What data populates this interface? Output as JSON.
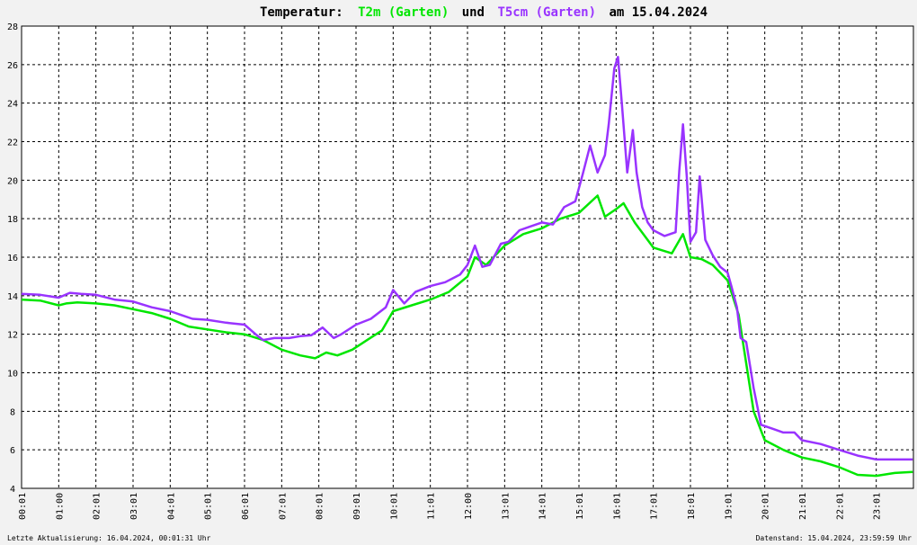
{
  "chart_data": {
    "type": "line",
    "title": {
      "prefix": "Temperatur:",
      "series1_label": "T2m (Garten)",
      "connector": "und",
      "series2_label": "T5cm (Garten)",
      "date_text": "am 15.04.2024"
    },
    "ylim": [
      4,
      28
    ],
    "y_ticks": [
      "4",
      "6",
      "8",
      "10",
      "12",
      "14",
      "16",
      "18",
      "20",
      "22",
      "24",
      "26",
      "28"
    ],
    "x_ticks": [
      "00:01",
      "01:00",
      "02:01",
      "03:01",
      "04:01",
      "05:01",
      "06:01",
      "07:01",
      "08:01",
      "09:01",
      "10:01",
      "11:01",
      "12:00",
      "13:01",
      "14:01",
      "15:01",
      "16:01",
      "17:01",
      "18:01",
      "19:01",
      "20:01",
      "21:01",
      "22:01",
      "23:01"
    ],
    "grid": true,
    "series": [
      {
        "name": "T2m (Garten)",
        "color": "#00e600",
        "points": [
          [
            0,
            13.8
          ],
          [
            0.5,
            13.75
          ],
          [
            1.0,
            13.5
          ],
          [
            1.2,
            13.6
          ],
          [
            1.5,
            13.65
          ],
          [
            2,
            13.6
          ],
          [
            2.5,
            13.5
          ],
          [
            3,
            13.3
          ],
          [
            3.5,
            13.1
          ],
          [
            4,
            12.8
          ],
          [
            4.5,
            12.4
          ],
          [
            5,
            12.25
          ],
          [
            5.5,
            12.1
          ],
          [
            6,
            12.0
          ],
          [
            6.5,
            11.7
          ],
          [
            7,
            11.2
          ],
          [
            7.5,
            10.9
          ],
          [
            7.9,
            10.75
          ],
          [
            8.2,
            11.05
          ],
          [
            8.5,
            10.9
          ],
          [
            8.9,
            11.2
          ],
          [
            9.3,
            11.7
          ],
          [
            9.7,
            12.2
          ],
          [
            10,
            13.2
          ],
          [
            10.5,
            13.5
          ],
          [
            11,
            13.8
          ],
          [
            11.5,
            14.2
          ],
          [
            12,
            15.0
          ],
          [
            12.2,
            16.0
          ],
          [
            12.5,
            15.6
          ],
          [
            13,
            16.6
          ],
          [
            13.5,
            17.2
          ],
          [
            14,
            17.5
          ],
          [
            14.5,
            18.0
          ],
          [
            15,
            18.3
          ],
          [
            15.5,
            19.2
          ],
          [
            15.7,
            18.1
          ],
          [
            16,
            18.5
          ],
          [
            16.2,
            18.8
          ],
          [
            16.5,
            17.8
          ],
          [
            17,
            16.5
          ],
          [
            17.5,
            16.2
          ],
          [
            17.8,
            17.2
          ],
          [
            18,
            16.0
          ],
          [
            18.3,
            15.9
          ],
          [
            18.6,
            15.6
          ],
          [
            19,
            14.8
          ],
          [
            19.3,
            13.0
          ],
          [
            19.5,
            10.5
          ],
          [
            19.7,
            8.0
          ],
          [
            19.9,
            7.0
          ],
          [
            20,
            6.5
          ],
          [
            20.5,
            6.0
          ],
          [
            21,
            5.6
          ],
          [
            21.5,
            5.4
          ],
          [
            22,
            5.1
          ],
          [
            22.5,
            4.7
          ],
          [
            23,
            4.65
          ],
          [
            23.5,
            4.8
          ],
          [
            23.98,
            4.85
          ]
        ]
      },
      {
        "name": "T5cm (Garten)",
        "color": "#9933ff",
        "points": [
          [
            0,
            14.1
          ],
          [
            0.5,
            14.05
          ],
          [
            1,
            13.9
          ],
          [
            1.3,
            14.15
          ],
          [
            1.6,
            14.1
          ],
          [
            2,
            14.05
          ],
          [
            2.5,
            13.8
          ],
          [
            3,
            13.7
          ],
          [
            3.5,
            13.4
          ],
          [
            4,
            13.2
          ],
          [
            4.3,
            13.0
          ],
          [
            4.6,
            12.8
          ],
          [
            5,
            12.75
          ],
          [
            5.5,
            12.6
          ],
          [
            6,
            12.5
          ],
          [
            6.3,
            12.0
          ],
          [
            6.5,
            11.7
          ],
          [
            6.8,
            11.8
          ],
          [
            7.2,
            11.8
          ],
          [
            7.5,
            11.9
          ],
          [
            7.8,
            11.95
          ],
          [
            8.1,
            12.35
          ],
          [
            8.4,
            11.8
          ],
          [
            8.6,
            12.0
          ],
          [
            9,
            12.5
          ],
          [
            9.4,
            12.8
          ],
          [
            9.8,
            13.4
          ],
          [
            10,
            14.3
          ],
          [
            10.3,
            13.6
          ],
          [
            10.6,
            14.2
          ],
          [
            11,
            14.5
          ],
          [
            11.4,
            14.7
          ],
          [
            11.8,
            15.1
          ],
          [
            12,
            15.6
          ],
          [
            12.2,
            16.6
          ],
          [
            12.4,
            15.5
          ],
          [
            12.6,
            15.6
          ],
          [
            12.9,
            16.7
          ],
          [
            13.1,
            16.8
          ],
          [
            13.4,
            17.4
          ],
          [
            13.7,
            17.6
          ],
          [
            14,
            17.8
          ],
          [
            14.3,
            17.7
          ],
          [
            14.6,
            18.6
          ],
          [
            14.9,
            18.9
          ],
          [
            15.1,
            20.3
          ],
          [
            15.3,
            21.8
          ],
          [
            15.5,
            20.4
          ],
          [
            15.7,
            21.3
          ],
          [
            15.8,
            22.9
          ],
          [
            15.95,
            25.8
          ],
          [
            16.05,
            26.4
          ],
          [
            16.15,
            24.1
          ],
          [
            16.3,
            20.4
          ],
          [
            16.45,
            22.6
          ],
          [
            16.55,
            20.4
          ],
          [
            16.7,
            18.6
          ],
          [
            16.85,
            17.8
          ],
          [
            17,
            17.4
          ],
          [
            17.3,
            17.1
          ],
          [
            17.6,
            17.3
          ],
          [
            17.7,
            20.5
          ],
          [
            17.8,
            22.9
          ],
          [
            17.9,
            20.2
          ],
          [
            18,
            16.8
          ],
          [
            18.15,
            17.3
          ],
          [
            18.25,
            20.2
          ],
          [
            18.4,
            16.9
          ],
          [
            18.6,
            16.1
          ],
          [
            18.8,
            15.5
          ],
          [
            19,
            15.2
          ],
          [
            19.1,
            14.5
          ],
          [
            19.25,
            13.4
          ],
          [
            19.35,
            11.8
          ],
          [
            19.5,
            11.6
          ],
          [
            19.7,
            9.2
          ],
          [
            19.9,
            7.3
          ],
          [
            20.2,
            7.1
          ],
          [
            20.5,
            6.9
          ],
          [
            20.8,
            6.9
          ],
          [
            21,
            6.5
          ],
          [
            21.5,
            6.3
          ],
          [
            22,
            6.0
          ],
          [
            22.5,
            5.7
          ],
          [
            23,
            5.5
          ],
          [
            23.5,
            5.5
          ],
          [
            23.98,
            5.5
          ]
        ]
      }
    ],
    "footer": {
      "left": "Letzte Aktualisierung: 16.04.2024, 00:01:31 Uhr",
      "right": "Datenstand: 15.04.2024, 23:59:59 Uhr"
    }
  }
}
